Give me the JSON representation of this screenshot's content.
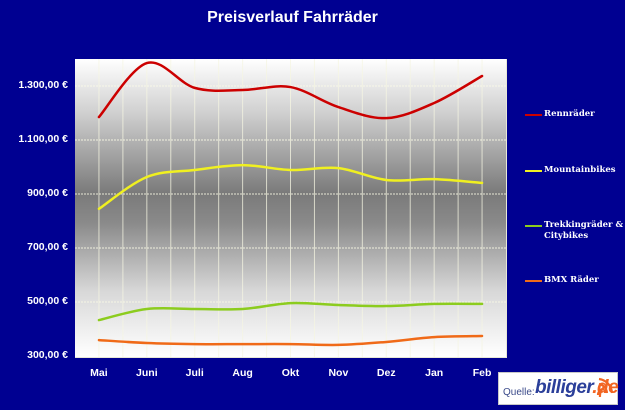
{
  "chart_data": {
    "type": "line",
    "title": "Preisverlauf Fahrräder",
    "xlabel": "",
    "ylabel": "",
    "categories": [
      "Mai",
      "Juni",
      "Juli",
      "Aug",
      "Okt",
      "Nov",
      "Dez",
      "Jan",
      "Feb"
    ],
    "y_ticks": [
      "1.300,00 €",
      "1.100,00 €",
      "900,00 €",
      "700,00 €",
      "500,00 €",
      "300,00 €"
    ],
    "ylim": [
      300,
      1400
    ],
    "grid": true,
    "legend_position": "right",
    "series": [
      {
        "name": "Rennräder",
        "color": "#cc0000",
        "values": [
          1185,
          1385,
          1293,
          1285,
          1296,
          1222,
          1181,
          1237,
          1337
        ]
      },
      {
        "name": "Mountainbikes",
        "color": "#f0f020",
        "values": [
          845,
          963,
          989,
          1007,
          989,
          996,
          952,
          955,
          941
        ]
      },
      {
        "name": "Trekkingräder & Citybikes",
        "color": "#8ccc1e",
        "values": [
          433,
          474,
          474,
          474,
          496,
          489,
          485,
          493,
          493
        ]
      },
      {
        "name": "BMX Räder",
        "color": "#f06a18",
        "values": [
          359,
          348,
          344,
          344,
          344,
          341,
          352,
          370,
          374
        ]
      }
    ]
  },
  "source": {
    "label": "Quelle:",
    "brand_main": "billiger",
    "brand_tld": ".de"
  }
}
